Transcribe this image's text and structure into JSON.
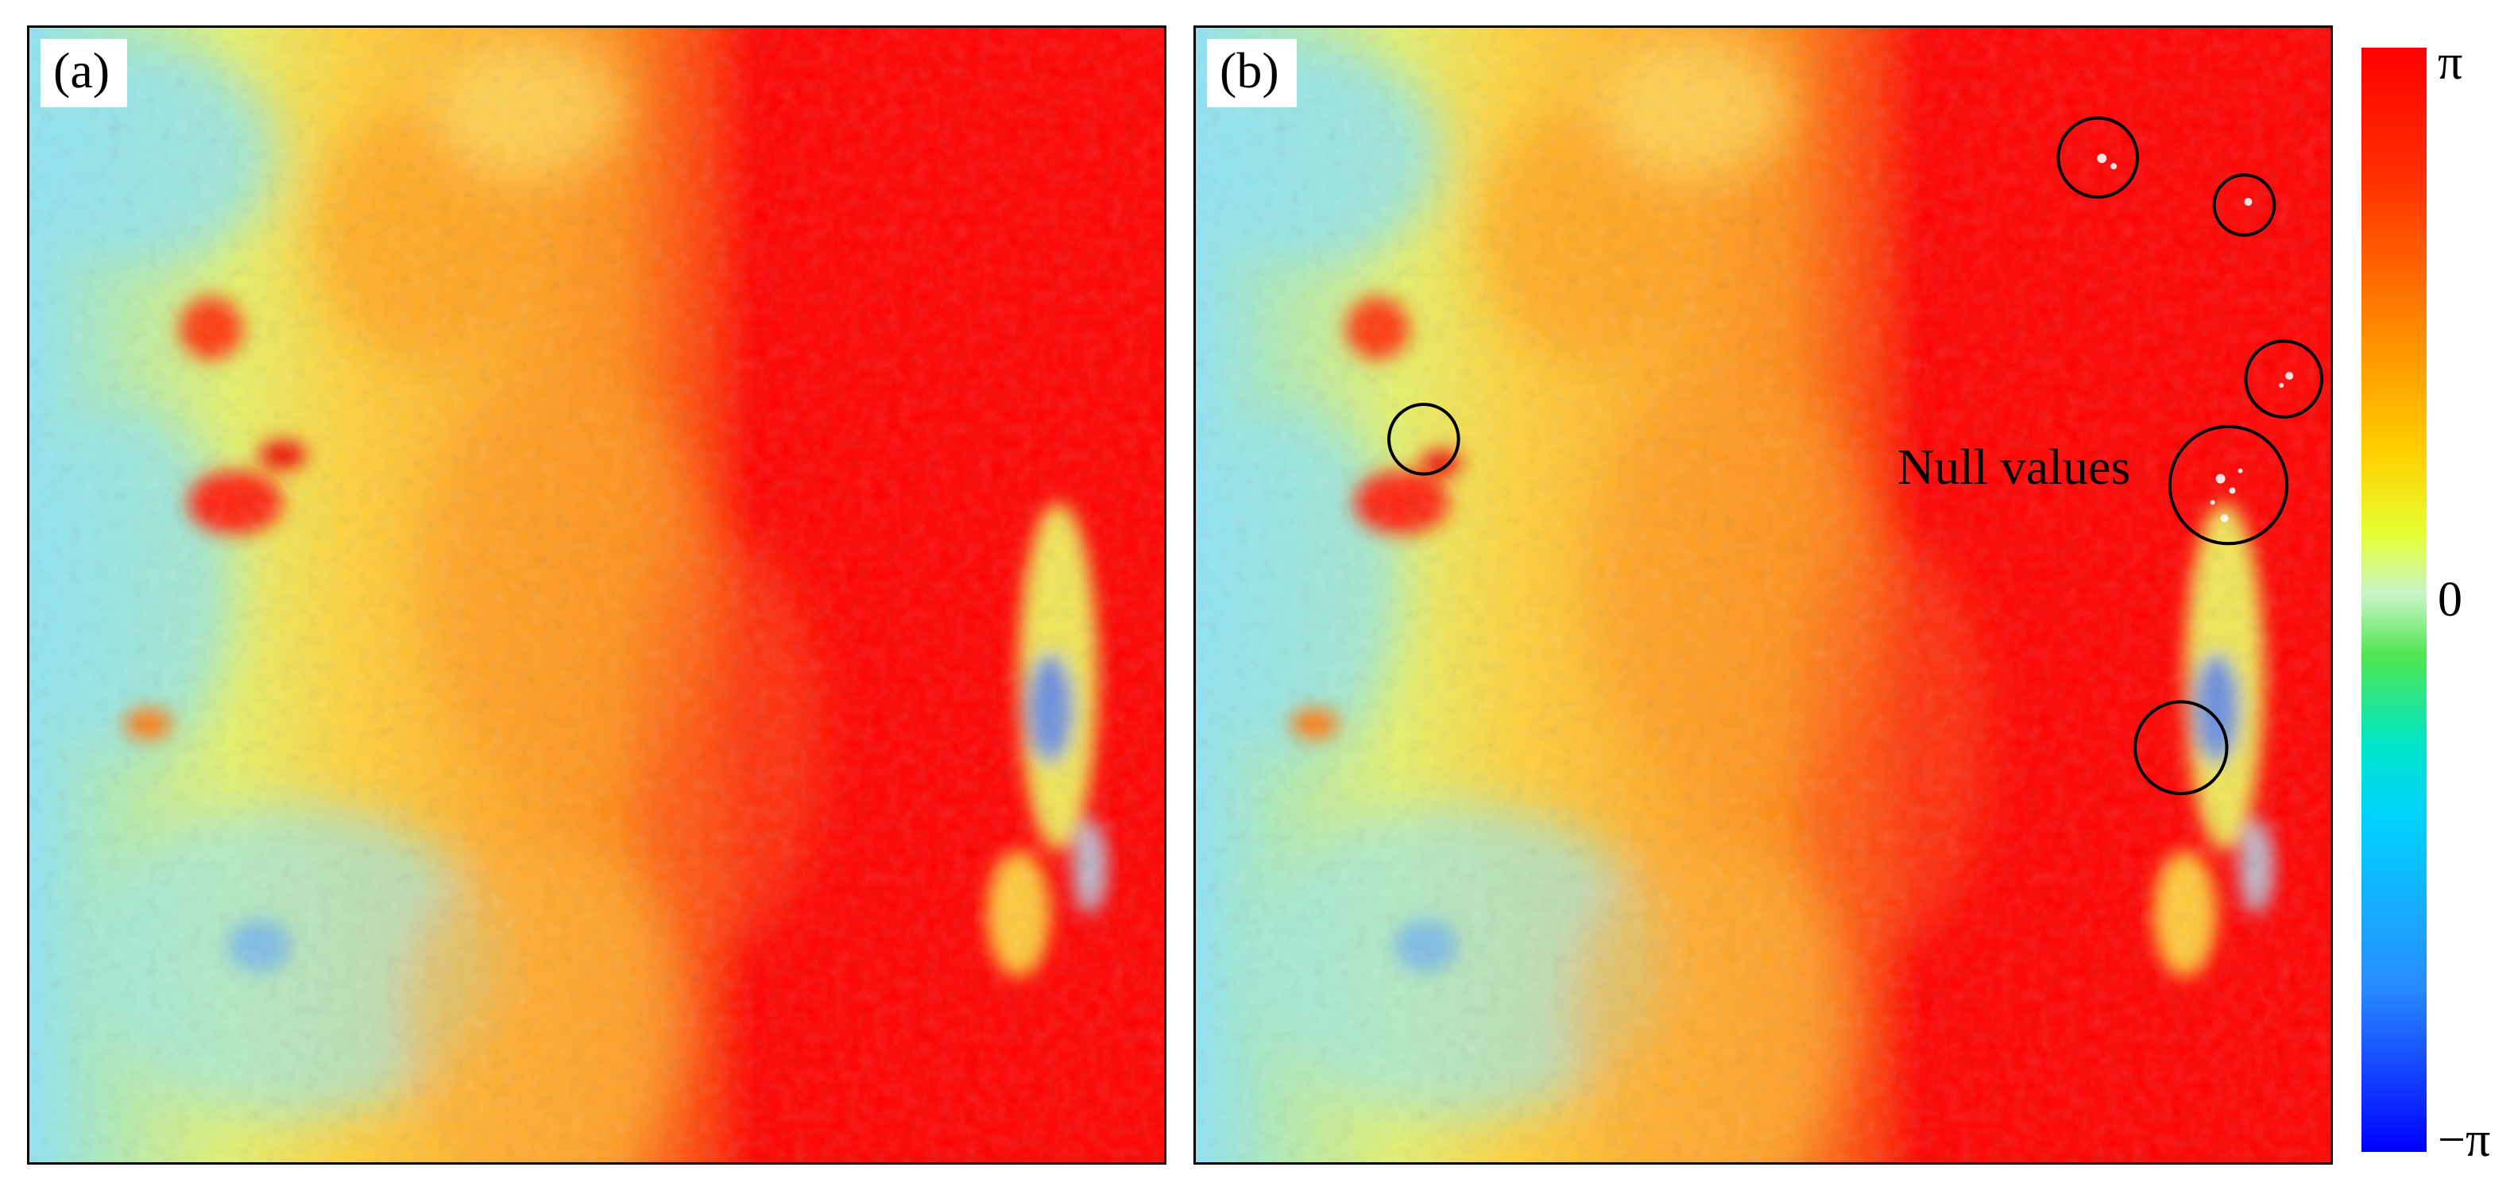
{
  "panels": [
    {
      "label": "(a)"
    },
    {
      "label": "(b)"
    }
  ],
  "annotation": {
    "text": "Null values"
  },
  "colorbar": {
    "max_label": "π",
    "mid_label": "0",
    "min_label": "−π",
    "colors": [
      "#ff0000",
      "#ff8c00",
      "#ffd200",
      "#c8f5c8",
      "#50e650",
      "#00d2ff",
      "#0000ff"
    ]
  }
}
